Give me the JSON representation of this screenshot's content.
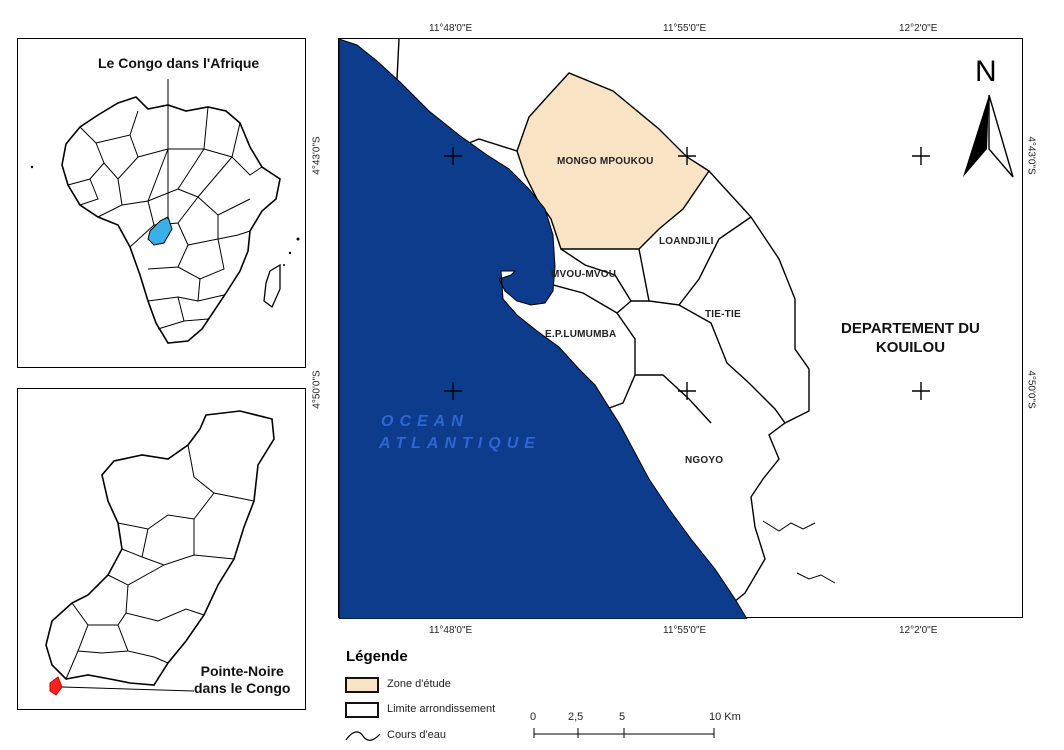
{
  "inset_africa": {
    "title": "Le Congo dans l'Afrique"
  },
  "inset_congo": {
    "title_line1": "Pointe-Noire",
    "title_line2": "dans le Congo"
  },
  "main_map": {
    "coords_top": [
      "11°48'0\"E",
      "11°55'0\"E",
      "12°2'0\"E"
    ],
    "coords_bottom": [
      "11°48'0\"E",
      "11°55'0\"E",
      "12°2'0\"E"
    ],
    "coords_left": [
      "4°43'0\"S",
      "4°50'0\"S"
    ],
    "coords_right": [
      "4°43'0\"S",
      "4°50'0\"S"
    ],
    "north_label": "N",
    "ocean_line1": "OCEAN",
    "ocean_line2": "ATLANTIQUE",
    "department_line1": "DEPARTEMENT DU",
    "department_line2": "KOUILOU",
    "districts": {
      "mongo_mpoukou": "MONGO MPOUKOU",
      "loandjili": "LOANDJILI",
      "mvou_mvou": "MVOU-MVOU",
      "tie_tie": "TIE-TIE",
      "ep_lumumba": "E.P.LUMUMBA",
      "ngoyo": "NGOYO"
    }
  },
  "legend": {
    "title": "Légende",
    "zone_label": "Zone d'étude",
    "limit_label": "Limite arrondissement",
    "river_label": "Cours d'eau"
  },
  "scale": {
    "ticks": [
      "0",
      "2,5",
      "5",
      "10 Km"
    ]
  },
  "colors": {
    "ocean": "#0d3c8c",
    "study_zone": "#f8e4c4",
    "congo_highlight": "#3ab0e8",
    "pointe_noire": "#ff2020",
    "ocean_text": "#2f66d4"
  }
}
